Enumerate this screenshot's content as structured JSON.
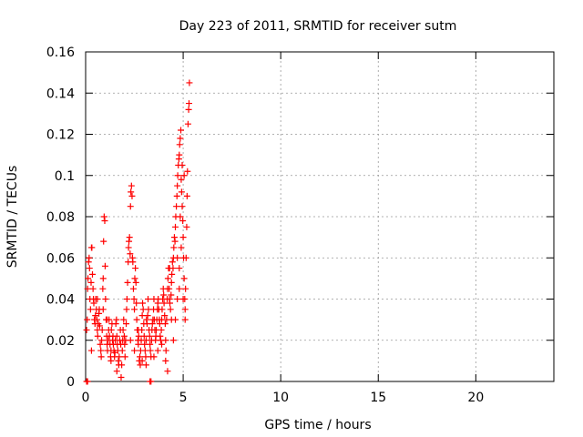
{
  "chart_data": {
    "type": "scatter",
    "title": "Day 223 of 2011, SRMTID for receiver sutm",
    "xlabel": "GPS time / hours",
    "ylabel": "SRMTID / TECUs",
    "xlim": [
      0,
      24
    ],
    "ylim": [
      0,
      0.16
    ],
    "xticks": [
      0,
      5,
      10,
      15,
      20
    ],
    "xtick_labels": [
      "0",
      "5",
      "10",
      "15",
      "20"
    ],
    "yticks": [
      0,
      0.02,
      0.04,
      0.06,
      0.08,
      0.1,
      0.12,
      0.14,
      0.16
    ],
    "ytick_labels": [
      "0",
      "0.02",
      "0.04",
      "0.06",
      "0.08",
      "0.1",
      "0.12",
      "0.14",
      "0.16"
    ],
    "grid": true,
    "marker": "plus",
    "color": "#ff0000",
    "series": [
      {
        "name": "SRMTID",
        "points": [
          [
            0.05,
            0.0
          ],
          [
            0.1,
            0.0
          ],
          [
            3.3,
            0.0
          ],
          [
            3.35,
            0.0
          ],
          [
            0.05,
            0.025
          ],
          [
            0.08,
            0.03
          ],
          [
            0.1,
            0.045
          ],
          [
            0.12,
            0.05
          ],
          [
            0.15,
            0.058
          ],
          [
            0.18,
            0.06
          ],
          [
            0.2,
            0.055
          ],
          [
            0.22,
            0.04
          ],
          [
            0.25,
            0.035
          ],
          [
            0.28,
            0.048
          ],
          [
            0.3,
            0.065
          ],
          [
            0.32,
            0.065
          ],
          [
            0.35,
            0.052
          ],
          [
            0.38,
            0.045
          ],
          [
            0.4,
            0.04
          ],
          [
            0.42,
            0.038
          ],
          [
            0.45,
            0.03
          ],
          [
            0.48,
            0.028
          ],
          [
            0.5,
            0.032
          ],
          [
            0.52,
            0.04
          ],
          [
            0.55,
            0.035
          ],
          [
            0.58,
            0.03
          ],
          [
            0.6,
            0.025
          ],
          [
            0.62,
            0.022
          ],
          [
            0.65,
            0.028
          ],
          [
            0.68,
            0.033
          ],
          [
            0.7,
            0.035
          ],
          [
            0.72,
            0.027
          ],
          [
            0.75,
            0.018
          ],
          [
            0.78,
            0.015
          ],
          [
            0.8,
            0.012
          ],
          [
            0.82,
            0.02
          ],
          [
            0.85,
            0.025
          ],
          [
            0.88,
            0.045
          ],
          [
            0.9,
            0.05
          ],
          [
            0.92,
            0.068
          ],
          [
            0.95,
            0.08
          ],
          [
            0.98,
            0.078
          ],
          [
            1.0,
            0.056
          ],
          [
            1.02,
            0.04
          ],
          [
            1.05,
            0.03
          ],
          [
            1.08,
            0.022
          ],
          [
            1.1,
            0.018
          ],
          [
            1.12,
            0.015
          ],
          [
            1.15,
            0.02
          ],
          [
            1.18,
            0.025
          ],
          [
            1.2,
            0.03
          ],
          [
            1.22,
            0.022
          ],
          [
            1.25,
            0.018
          ],
          [
            1.28,
            0.012
          ],
          [
            1.3,
            0.015
          ],
          [
            1.32,
            0.025
          ],
          [
            1.35,
            0.028
          ],
          [
            1.38,
            0.02
          ],
          [
            1.4,
            0.022
          ],
          [
            1.42,
            0.018
          ],
          [
            1.45,
            0.015
          ],
          [
            1.48,
            0.012
          ],
          [
            1.5,
            0.014
          ],
          [
            1.52,
            0.02
          ],
          [
            1.55,
            0.028
          ],
          [
            1.58,
            0.03
          ],
          [
            1.6,
            0.022
          ],
          [
            1.62,
            0.018
          ],
          [
            1.65,
            0.015
          ],
          [
            1.68,
            0.01
          ],
          [
            1.7,
            0.008
          ],
          [
            1.72,
            0.012
          ],
          [
            1.75,
            0.02
          ],
          [
            1.78,
            0.025
          ],
          [
            1.8,
            0.018
          ],
          [
            1.82,
            0.002
          ],
          [
            1.85,
            0.008
          ],
          [
            1.88,
            0.015
          ],
          [
            1.9,
            0.02
          ],
          [
            1.92,
            0.025
          ],
          [
            1.95,
            0.03
          ],
          [
            1.98,
            0.022
          ],
          [
            2.0,
            0.018
          ],
          [
            2.02,
            0.012
          ],
          [
            2.05,
            0.02
          ],
          [
            2.08,
            0.028
          ],
          [
            2.1,
            0.035
          ],
          [
            2.12,
            0.04
          ],
          [
            2.15,
            0.048
          ],
          [
            2.18,
            0.058
          ],
          [
            2.2,
            0.065
          ],
          [
            2.22,
            0.068
          ],
          [
            2.25,
            0.07
          ],
          [
            2.28,
            0.062
          ],
          [
            2.3,
            0.085
          ],
          [
            2.32,
            0.092
          ],
          [
            2.35,
            0.095
          ],
          [
            2.38,
            0.09
          ],
          [
            2.4,
            0.06
          ],
          [
            2.42,
            0.058
          ],
          [
            2.45,
            0.045
          ],
          [
            2.48,
            0.04
          ],
          [
            2.5,
            0.035
          ],
          [
            2.52,
            0.05
          ],
          [
            2.55,
            0.055
          ],
          [
            2.58,
            0.048
          ],
          [
            2.6,
            0.038
          ],
          [
            2.62,
            0.03
          ],
          [
            2.65,
            0.025
          ],
          [
            2.68,
            0.02
          ],
          [
            2.7,
            0.018
          ],
          [
            2.72,
            0.022
          ],
          [
            2.75,
            0.01
          ],
          [
            2.78,
            0.012
          ],
          [
            2.8,
            0.008
          ],
          [
            2.82,
            0.015
          ],
          [
            2.85,
            0.02
          ],
          [
            2.88,
            0.025
          ],
          [
            2.9,
            0.032
          ],
          [
            2.92,
            0.038
          ],
          [
            2.95,
            0.035
          ],
          [
            2.98,
            0.028
          ],
          [
            3.0,
            0.022
          ],
          [
            3.02,
            0.018
          ],
          [
            3.05,
            0.015
          ],
          [
            3.08,
            0.012
          ],
          [
            3.1,
            0.02
          ],
          [
            3.12,
            0.03
          ],
          [
            3.15,
            0.028
          ],
          [
            3.18,
            0.032
          ],
          [
            3.2,
            0.04
          ],
          [
            3.22,
            0.035
          ],
          [
            3.25,
            0.025
          ],
          [
            3.28,
            0.022
          ],
          [
            3.3,
            0.018
          ],
          [
            3.32,
            0.015
          ],
          [
            3.35,
            0.012
          ],
          [
            3.38,
            0.02
          ],
          [
            3.4,
            0.025
          ],
          [
            3.42,
            0.028
          ],
          [
            3.45,
            0.03
          ],
          [
            3.48,
            0.035
          ],
          [
            3.5,
            0.04
          ],
          [
            3.52,
            0.03
          ],
          [
            3.55,
            0.025
          ],
          [
            3.58,
            0.02
          ],
          [
            3.6,
            0.022
          ],
          [
            3.62,
            0.025
          ],
          [
            3.65,
            0.03
          ],
          [
            3.68,
            0.035
          ],
          [
            3.7,
            0.038
          ],
          [
            3.72,
            0.04
          ],
          [
            3.75,
            0.035
          ],
          [
            3.78,
            0.03
          ],
          [
            3.8,
            0.028
          ],
          [
            3.82,
            0.022
          ],
          [
            3.85,
            0.02
          ],
          [
            3.88,
            0.025
          ],
          [
            3.9,
            0.03
          ],
          [
            3.92,
            0.035
          ],
          [
            3.95,
            0.04
          ],
          [
            3.98,
            0.045
          ],
          [
            4.0,
            0.042
          ],
          [
            4.02,
            0.038
          ],
          [
            4.05,
            0.032
          ],
          [
            4.08,
            0.028
          ],
          [
            4.1,
            0.02
          ],
          [
            4.12,
            0.015
          ],
          [
            4.15,
            0.03
          ],
          [
            4.18,
            0.04
          ],
          [
            4.2,
            0.045
          ],
          [
            4.22,
            0.05
          ],
          [
            4.25,
            0.055
          ],
          [
            4.28,
            0.045
          ],
          [
            4.3,
            0.04
          ],
          [
            4.32,
            0.038
          ],
          [
            4.35,
            0.035
          ],
          [
            4.38,
            0.042
          ],
          [
            4.4,
            0.048
          ],
          [
            4.42,
            0.052
          ],
          [
            4.45,
            0.058
          ],
          [
            4.48,
            0.055
          ],
          [
            4.5,
            0.06
          ],
          [
            4.52,
            0.065
          ],
          [
            4.55,
            0.07
          ],
          [
            4.58,
            0.068
          ],
          [
            4.6,
            0.075
          ],
          [
            4.62,
            0.08
          ],
          [
            4.65,
            0.085
          ],
          [
            4.68,
            0.09
          ],
          [
            4.7,
            0.095
          ],
          [
            4.72,
            0.1
          ],
          [
            4.75,
            0.105
          ],
          [
            4.78,
            0.108
          ],
          [
            4.8,
            0.11
          ],
          [
            4.82,
            0.115
          ],
          [
            4.85,
            0.118
          ],
          [
            4.88,
            0.122
          ],
          [
            4.9,
            0.098
          ],
          [
            4.92,
            0.092
          ],
          [
            4.95,
            0.085
          ],
          [
            4.98,
            0.078
          ],
          [
            5.0,
            0.07
          ],
          [
            5.02,
            0.06
          ],
          [
            5.05,
            0.05
          ],
          [
            5.08,
            0.04
          ],
          [
            5.1,
            0.035
          ],
          [
            5.12,
            0.045
          ],
          [
            5.15,
            0.06
          ],
          [
            5.18,
            0.075
          ],
          [
            5.2,
            0.09
          ],
          [
            5.22,
            0.102
          ],
          [
            5.25,
            0.125
          ],
          [
            5.28,
            0.132
          ],
          [
            5.3,
            0.135
          ],
          [
            5.32,
            0.145
          ],
          [
            0.3,
            0.015
          ],
          [
            0.6,
            0.04
          ],
          [
            0.9,
            0.035
          ],
          [
            1.1,
            0.03
          ],
          [
            1.3,
            0.01
          ],
          [
            1.6,
            0.005
          ],
          [
            2.3,
            0.02
          ],
          [
            2.5,
            0.015
          ],
          [
            2.7,
            0.025
          ],
          [
            2.9,
            0.01
          ],
          [
            3.1,
            0.008
          ],
          [
            3.5,
            0.012
          ],
          [
            3.7,
            0.015
          ],
          [
            3.9,
            0.018
          ],
          [
            4.1,
            0.01
          ],
          [
            4.2,
            0.005
          ],
          [
            4.3,
            0.055
          ],
          [
            4.4,
            0.03
          ],
          [
            4.6,
            0.03
          ],
          [
            4.7,
            0.04
          ],
          [
            4.8,
            0.055
          ],
          [
            4.9,
            0.065
          ],
          [
            5.0,
            0.04
          ],
          [
            5.1,
            0.03
          ],
          [
            4.5,
            0.02
          ],
          [
            4.7,
            0.06
          ],
          [
            4.8,
            0.045
          ],
          [
            4.85,
            0.08
          ],
          [
            4.95,
            0.105
          ],
          [
            5.05,
            0.1
          ]
        ]
      }
    ]
  }
}
